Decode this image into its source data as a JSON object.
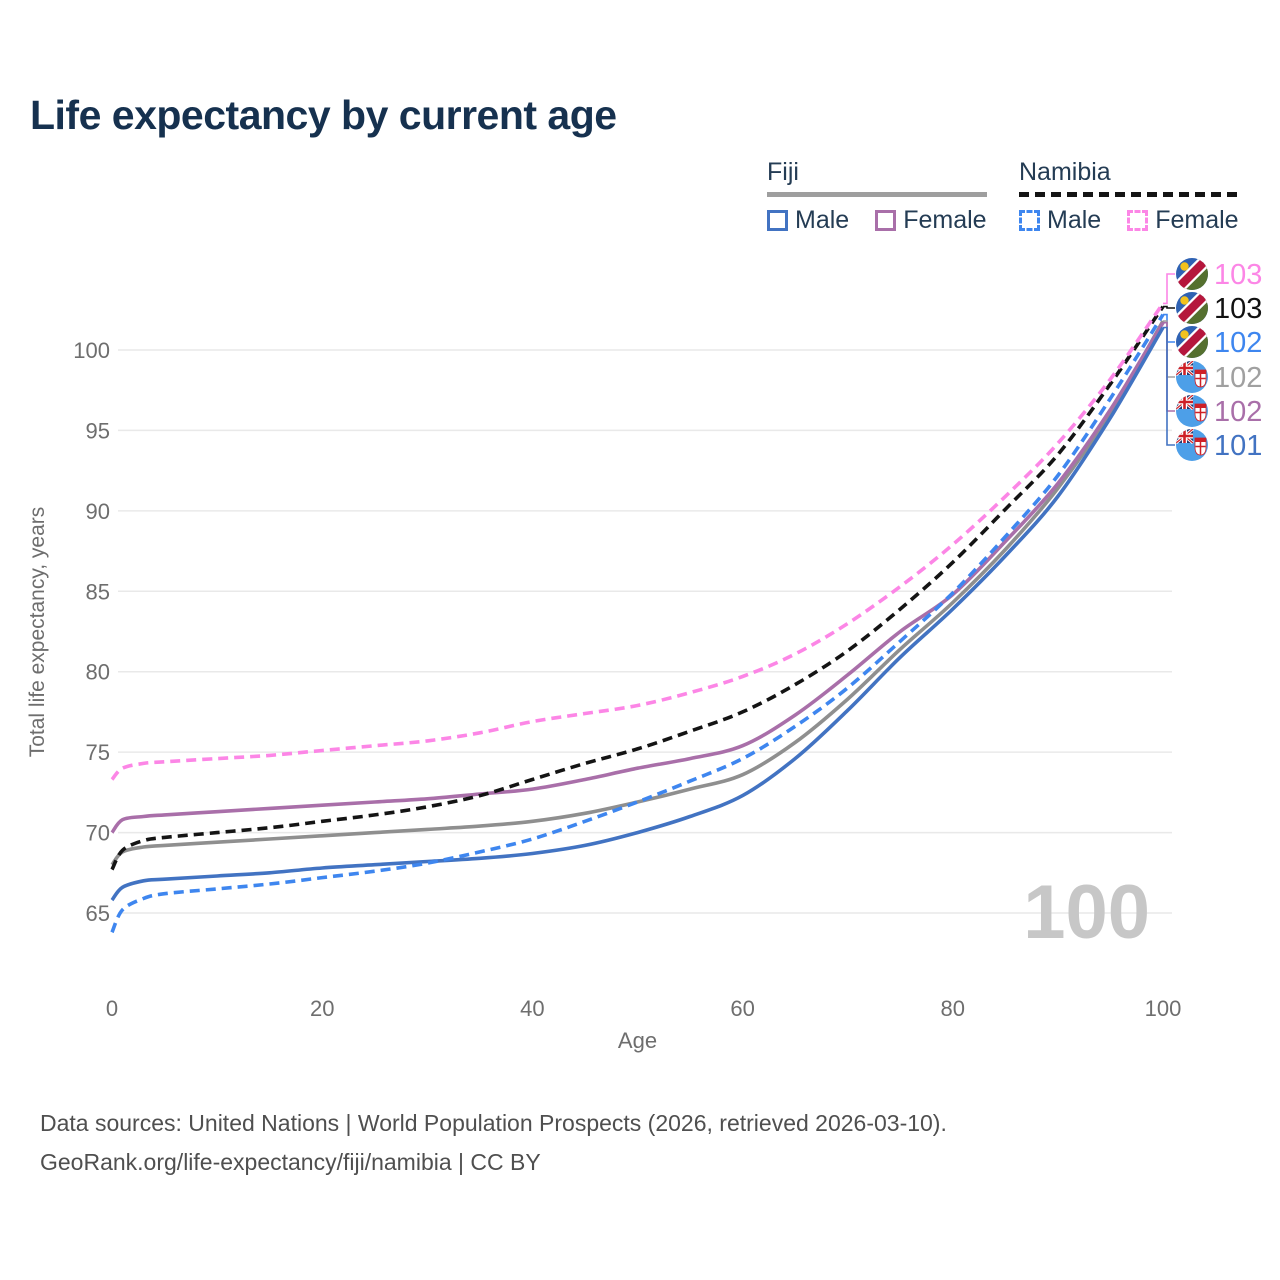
{
  "title": "Life expectancy by current age",
  "legend": {
    "groups": [
      {
        "label": "Fiji",
        "style": "solid",
        "items": [
          {
            "label": "Male",
            "color": "#4273c2"
          },
          {
            "label": "Female",
            "color": "#a96fa9"
          }
        ]
      },
      {
        "label": "Namibia",
        "style": "dashed",
        "items": [
          {
            "label": "Male",
            "color": "#3e86ef"
          },
          {
            "label": "Female",
            "color": "#fc86e6"
          }
        ]
      }
    ]
  },
  "y_axis": {
    "title": "Total life expectancy, years",
    "ticks": [
      65,
      70,
      75,
      80,
      85,
      90,
      95,
      100
    ]
  },
  "x_axis": {
    "title": "Age",
    "ticks": [
      0,
      20,
      40,
      60,
      80,
      100
    ]
  },
  "watermark": "100",
  "end_labels": [
    {
      "flag": "namibia",
      "country": "Namibia",
      "series": "Female",
      "value": "103",
      "color": "#fc86e6",
      "series_index": 4
    },
    {
      "flag": "namibia",
      "country": "Namibia",
      "series": "Total",
      "value": "103",
      "color": "#111111",
      "series_index": 5
    },
    {
      "flag": "namibia",
      "country": "Namibia",
      "series": "Male",
      "value": "102",
      "color": "#3e86ef",
      "series_index": 3
    },
    {
      "flag": "fiji",
      "country": "Fiji",
      "series": "Total",
      "value": "102",
      "color": "#a0a0a0",
      "series_index": 2
    },
    {
      "flag": "fiji",
      "country": "Fiji",
      "series": "Female",
      "value": "102",
      "color": "#a96fa9",
      "series_index": 1
    },
    {
      "flag": "fiji",
      "country": "Fiji",
      "series": "Male",
      "value": "101",
      "color": "#4273c2",
      "series_index": 0
    }
  ],
  "footer": {
    "line1": "Data sources: United Nations | World Population Prospects (2026, retrieved 2026-03-10).",
    "line2": "GeoRank.org/life-expectancy/fiji/namibia | CC BY"
  },
  "chart_data": {
    "type": "line",
    "title": "Life expectancy by current age",
    "xlabel": "Age",
    "ylabel": "Total life expectancy, years",
    "xlim": [
      0,
      100
    ],
    "ylim": [
      63.5,
      103.5
    ],
    "grid": "horizontal",
    "legend_position": "top-right",
    "x": [
      0,
      1,
      3,
      5,
      10,
      15,
      20,
      25,
      30,
      35,
      40,
      45,
      50,
      55,
      60,
      65,
      70,
      75,
      80,
      85,
      90,
      95,
      100
    ],
    "series": [
      {
        "name": "Fiji Male",
        "country": "Fiji",
        "sex": "Male",
        "color": "#4273c2",
        "dash": false,
        "values": [
          65.8,
          66.6,
          67.0,
          67.1,
          67.3,
          67.5,
          67.8,
          68.0,
          68.2,
          68.4,
          68.7,
          69.2,
          70.0,
          71.0,
          72.3,
          74.6,
          77.6,
          80.9,
          83.9,
          87.2,
          90.9,
          95.8,
          101.4
        ]
      },
      {
        "name": "Fiji Female",
        "country": "Fiji",
        "sex": "Female",
        "color": "#a96fa9",
        "dash": false,
        "values": [
          70.0,
          70.8,
          71.0,
          71.1,
          71.3,
          71.5,
          71.7,
          71.9,
          72.1,
          72.4,
          72.7,
          73.3,
          74.0,
          74.6,
          75.4,
          77.3,
          79.8,
          82.5,
          84.8,
          88.1,
          91.7,
          96.3,
          101.7
        ]
      },
      {
        "name": "Fiji Total",
        "country": "Fiji",
        "sex": "Total",
        "color": "#8f8f8f",
        "dash": false,
        "values": [
          68.0,
          68.8,
          69.1,
          69.2,
          69.4,
          69.6,
          69.8,
          70.0,
          70.2,
          70.4,
          70.7,
          71.2,
          71.9,
          72.7,
          73.6,
          75.6,
          78.3,
          81.4,
          84.3,
          87.6,
          91.4,
          96.1,
          101.8
        ]
      },
      {
        "name": "Namibia Male",
        "country": "Namibia",
        "sex": "Male",
        "color": "#3e86ef",
        "dash": true,
        "values": [
          63.8,
          65.2,
          65.9,
          66.2,
          66.5,
          66.8,
          67.2,
          67.6,
          68.1,
          68.8,
          69.6,
          70.7,
          71.9,
          73.2,
          74.6,
          76.6,
          79.0,
          81.9,
          84.9,
          88.4,
          92.2,
          97.0,
          102.2
        ]
      },
      {
        "name": "Namibia Female",
        "country": "Namibia",
        "sex": "Female",
        "color": "#fc86e6",
        "dash": true,
        "values": [
          73.3,
          74.0,
          74.3,
          74.4,
          74.6,
          74.8,
          75.1,
          75.4,
          75.7,
          76.2,
          76.9,
          77.4,
          77.9,
          78.7,
          79.7,
          81.1,
          83.0,
          85.3,
          87.9,
          90.9,
          94.2,
          98.2,
          102.9
        ]
      },
      {
        "name": "Namibia Total",
        "country": "Namibia",
        "sex": "Total",
        "color": "#141414",
        "dash": true,
        "values": [
          67.7,
          68.9,
          69.5,
          69.7,
          70.0,
          70.3,
          70.7,
          71.1,
          71.6,
          72.3,
          73.3,
          74.3,
          75.2,
          76.3,
          77.5,
          79.2,
          81.3,
          83.9,
          86.8,
          90.1,
          93.5,
          97.9,
          102.7
        ]
      }
    ]
  }
}
